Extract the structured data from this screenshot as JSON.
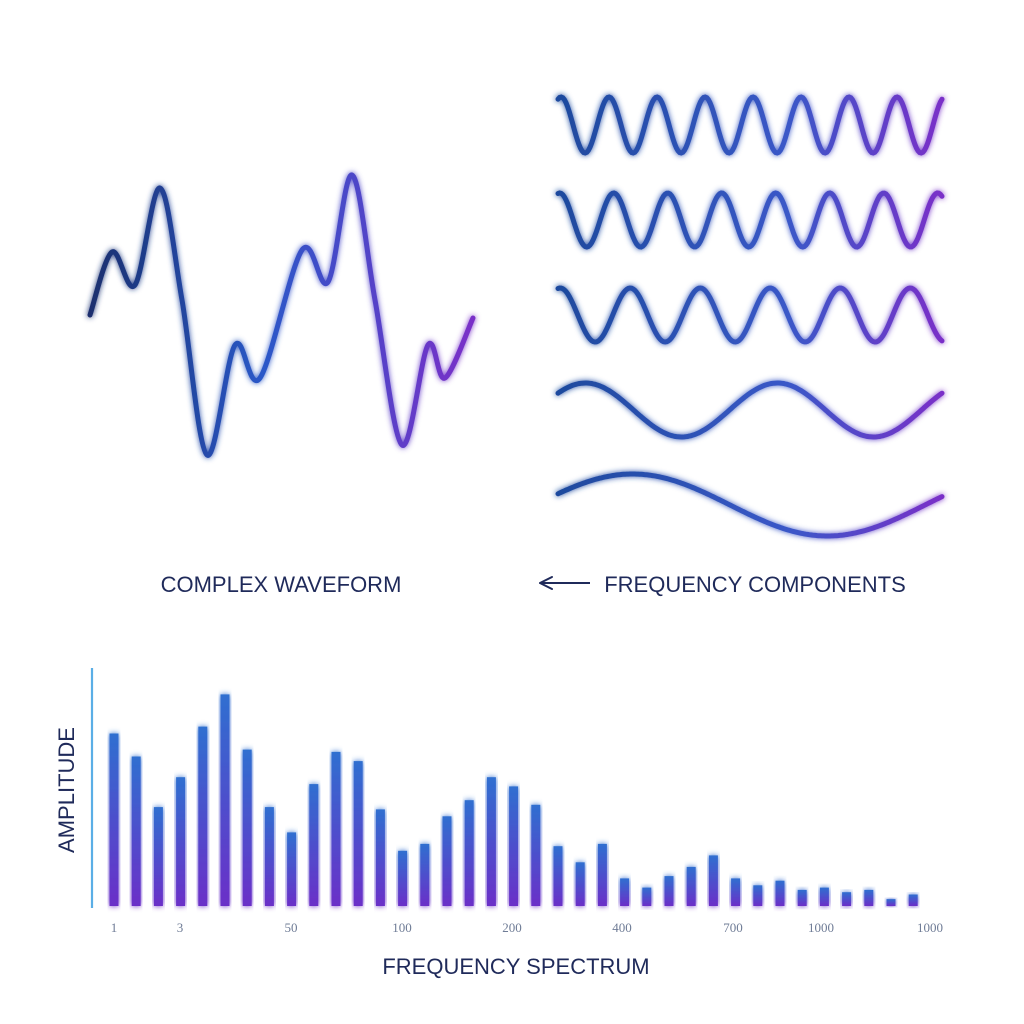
{
  "labels": {
    "complex_waveform": "COMPLEX WAVEFORM",
    "frequency_components": "FREQUENCY COMPONENTS",
    "amplitude": "AMPLITUDE",
    "frequency_spectrum": "FREQUENCY SPECTRUM",
    "arrow": "arrow-left-icon"
  },
  "colors": {
    "navy": "#1a2f6e",
    "blue": "#2a58c8",
    "violet": "#7a2fc8",
    "cyan_glow": "#4fc3f7",
    "divider": "#3aa0e0"
  },
  "chart_data": {
    "type": "bar",
    "title": "",
    "xlabel": "FREQUENCY SPECTRUM",
    "ylabel": "AMPLITUDE",
    "ylim": [
      0,
      100
    ],
    "x_tick_labels": [
      "1",
      "3",
      "50",
      "100",
      "200",
      "400",
      "700",
      "1000",
      "1000"
    ],
    "values": [
      75,
      65,
      43,
      56,
      78,
      92,
      68,
      43,
      32,
      53,
      67,
      63,
      42,
      24,
      27,
      39,
      46,
      56,
      52,
      44,
      26,
      19,
      27,
      12,
      8,
      13,
      17,
      22,
      12,
      9,
      11,
      7,
      8,
      6,
      7,
      3,
      5
    ]
  }
}
